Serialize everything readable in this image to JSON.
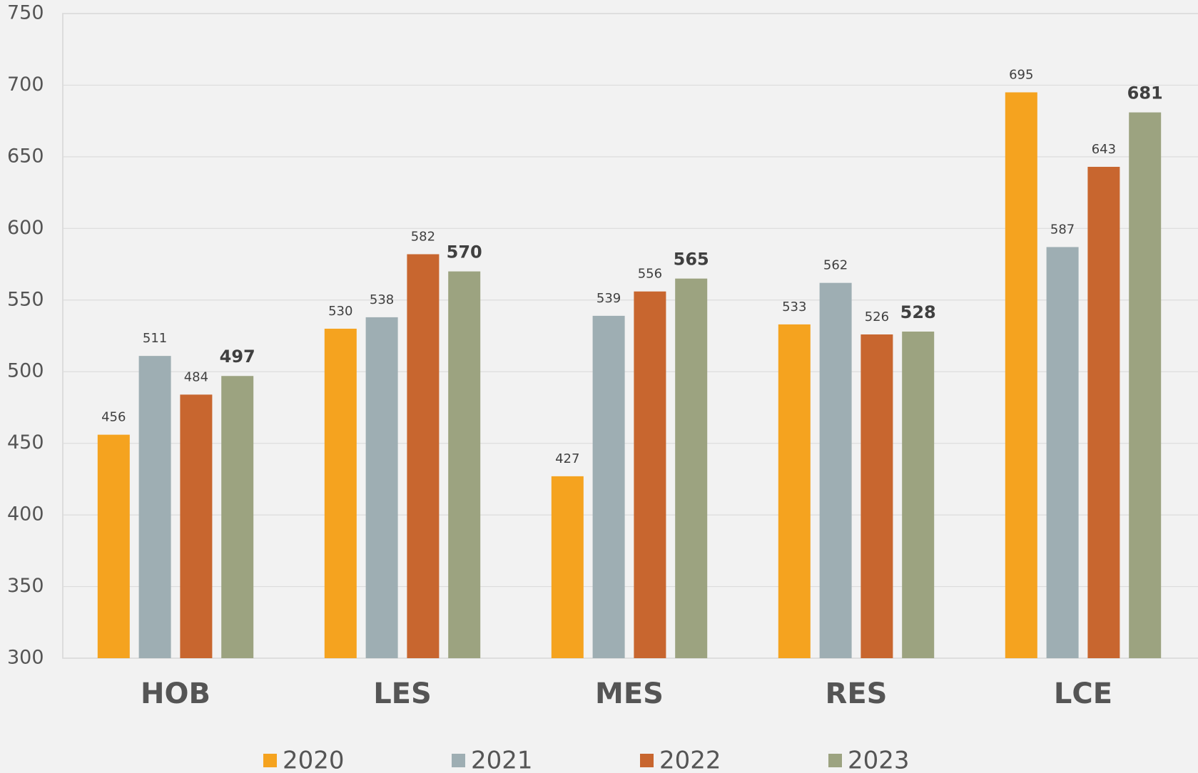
{
  "chart_data": {
    "type": "bar",
    "categories": [
      "HOB",
      "LES",
      "MES",
      "RES",
      "LCE"
    ],
    "series": [
      {
        "name": "2020",
        "color": "#f5a31f",
        "values": [
          456,
          530,
          427,
          533,
          695
        ]
      },
      {
        "name": "2021",
        "color": "#9eaeb3",
        "values": [
          511,
          538,
          539,
          562,
          587
        ]
      },
      {
        "name": "2022",
        "color": "#c8662f",
        "values": [
          484,
          582,
          556,
          526,
          643
        ]
      },
      {
        "name": "2023",
        "color": "#9ca380",
        "values": [
          497,
          570,
          565,
          528,
          681
        ],
        "label_bold": true
      }
    ],
    "ylim": [
      300,
      750
    ],
    "yticks": [
      300,
      350,
      400,
      450,
      500,
      550,
      600,
      650,
      700,
      750
    ],
    "grid": true,
    "legend": "bottom"
  }
}
